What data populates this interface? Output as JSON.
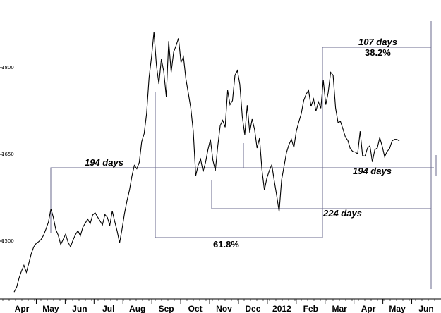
{
  "chart_data": {
    "type": "line",
    "title": "",
    "xlabel": "",
    "ylabel": "",
    "ylim": [
      1390,
      1890
    ],
    "y_ticks": [
      {
        "label": "1500",
        "value": 1500
      },
      {
        "label": "1650",
        "value": 1650
      },
      {
        "label": "1800",
        "value": 1800
      }
    ],
    "x_ticks": [
      "Apr",
      "May",
      "Jun",
      "Jul",
      "Aug",
      "Sep",
      "Oct",
      "Nov",
      "Dec",
      "2012",
      "Feb",
      "Mar",
      "Apr",
      "May",
      "Jun"
    ],
    "series": [
      {
        "values": [
          1412,
          1420,
          1436,
          1448,
          1458,
          1446,
          1462,
          1478,
          1490,
          1496,
          1499,
          1503,
          1510,
          1521,
          1533,
          1556,
          1541,
          1520,
          1510,
          1494,
          1503,
          1512,
          1498,
          1490,
          1502,
          1511,
          1518,
          1509,
          1524,
          1531,
          1538,
          1530,
          1545,
          1549,
          1542,
          1535,
          1528,
          1546,
          1541,
          1527,
          1552,
          1534,
          1517,
          1497,
          1521,
          1548,
          1570,
          1588,
          1612,
          1631,
          1625,
          1636,
          1672,
          1686,
          1721,
          1783,
          1819,
          1862,
          1804,
          1772,
          1815,
          1793,
          1750,
          1846,
          1792,
          1827,
          1838,
          1851,
          1809,
          1819,
          1781,
          1756,
          1730,
          1690,
          1613,
          1631,
          1642,
          1620,
          1636,
          1658,
          1676,
          1640,
          1622,
          1664,
          1700,
          1709,
          1697,
          1761,
          1736,
          1743,
          1787,
          1795,
          1771,
          1715,
          1684,
          1735,
          1688,
          1711,
          1693,
          1661,
          1678,
          1624,
          1588,
          1609,
          1622,
          1632,
          1605,
          1579,
          1551,
          1606,
          1629,
          1653,
          1667,
          1676,
          1662,
          1690,
          1706,
          1720,
          1743,
          1754,
          1761,
          1733,
          1746,
          1725,
          1741,
          1730,
          1778,
          1736,
          1757,
          1792,
          1787,
          1730,
          1705,
          1707,
          1694,
          1680,
          1674,
          1660,
          1655,
          1654,
          1651,
          1690,
          1648,
          1647,
          1661,
          1665,
          1637,
          1658,
          1661,
          1679,
          1664,
          1646,
          1655,
          1660,
          1673,
          1676,
          1676,
          1673
        ]
      }
    ],
    "annotations": {
      "days_194_left": "194 days",
      "days_194_right": "194 days",
      "days_224": "224 days",
      "days_107": "107 days",
      "pct_382": "38.2%",
      "pct_618": "61.8%"
    },
    "grid": false,
    "legend": "none"
  }
}
